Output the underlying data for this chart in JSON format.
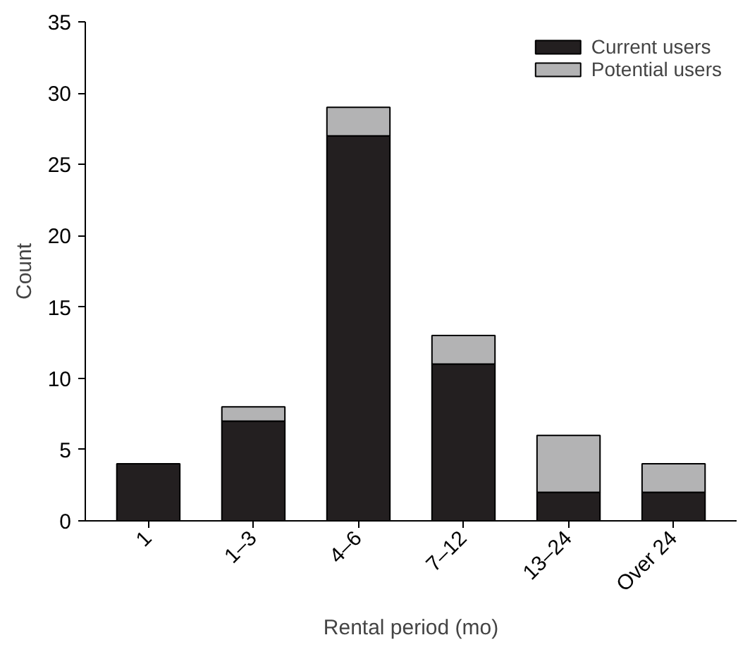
{
  "chart_data": {
    "type": "bar",
    "stacked": true,
    "xlabel": "Rental period (mo)",
    "ylabel": "Count",
    "categories": [
      "1",
      "1–3",
      "4–6",
      "7–12",
      "13–24",
      "Over 24"
    ],
    "series": [
      {
        "name": "Current users",
        "color": "#231f20",
        "values": [
          4,
          7,
          27,
          11,
          2,
          2
        ]
      },
      {
        "name": "Potential users",
        "color": "#b3b3b4",
        "values": [
          0,
          1,
          2,
          2,
          4,
          2
        ]
      }
    ],
    "ylim": [
      0,
      35
    ],
    "yticks": [
      0,
      5,
      10,
      15,
      20,
      25,
      30,
      35
    ],
    "grid": false,
    "legend": "top right"
  }
}
